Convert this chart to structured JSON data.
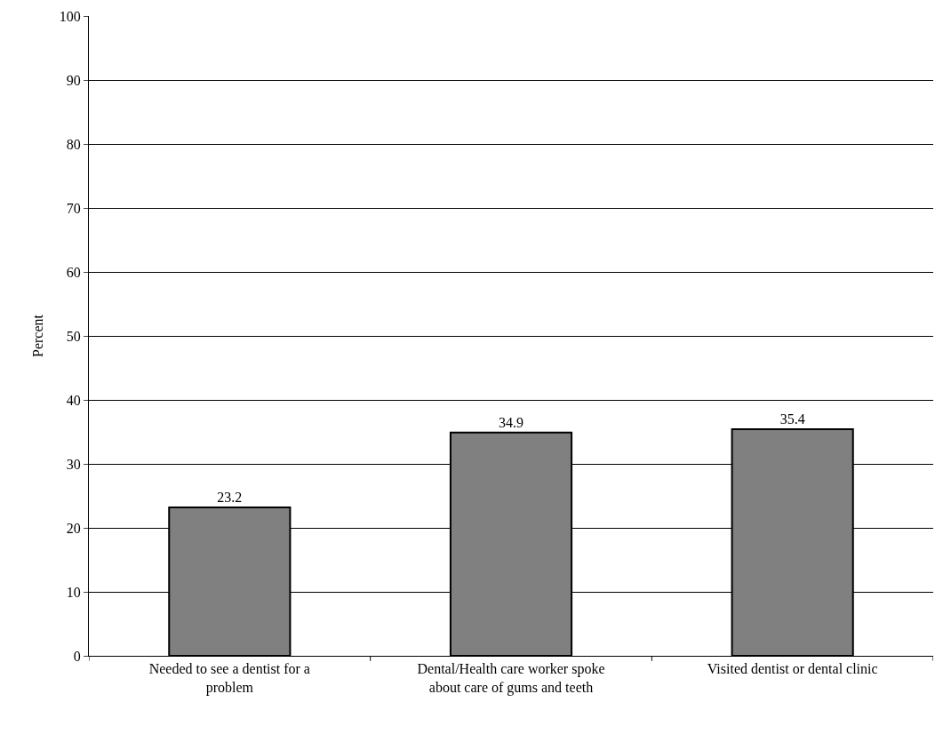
{
  "chart_data": {
    "type": "bar",
    "categories": [
      "Needed to see a dentist for a problem",
      "Dental/Health care worker spoke about care of gums and teeth",
      "Visited dentist or dental clinic"
    ],
    "values": [
      23.2,
      34.9,
      35.4
    ],
    "color": "#808080",
    "ylabel": "Percent",
    "ylim": [
      0,
      100
    ],
    "yticks": [
      0,
      10,
      20,
      30,
      40,
      50,
      60,
      70,
      80,
      90,
      100
    ],
    "grid": "y",
    "data_labels": true
  }
}
